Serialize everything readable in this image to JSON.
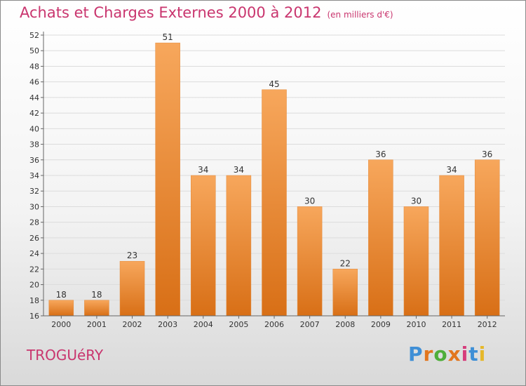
{
  "title": "Achats et Charges Externes 2000 à 2012",
  "unit": "(en milliers d'€)",
  "location": "TROGUéRY",
  "logo": {
    "text": "Proxiti",
    "letter_colors": [
      "#3f8fd6",
      "#e2761e",
      "#4fae3a",
      "#e2761e",
      "#d63c7b",
      "#3f8fd6",
      "#e6b82a"
    ]
  },
  "colors": {
    "bar_top": "#f7a75c",
    "bar_bottom": "#d86f16",
    "title": "#c9356e"
  },
  "chart_data": {
    "type": "bar",
    "title": "Achats et Charges Externes 2000 à 2012",
    "subtitle": "(en milliers d'€)",
    "categories": [
      "2000",
      "2001",
      "2002",
      "2003",
      "2004",
      "2005",
      "2006",
      "2007",
      "2008",
      "2009",
      "2010",
      "2011",
      "2012"
    ],
    "values": [
      18,
      18,
      23,
      51,
      34,
      34,
      45,
      30,
      22,
      36,
      30,
      34,
      36
    ],
    "ylim": [
      16,
      52
    ],
    "yticks": [
      16,
      18,
      20,
      22,
      24,
      26,
      28,
      30,
      32,
      34,
      36,
      38,
      40,
      42,
      44,
      46,
      48,
      50,
      52
    ],
    "grid": true,
    "data_labels": true
  }
}
